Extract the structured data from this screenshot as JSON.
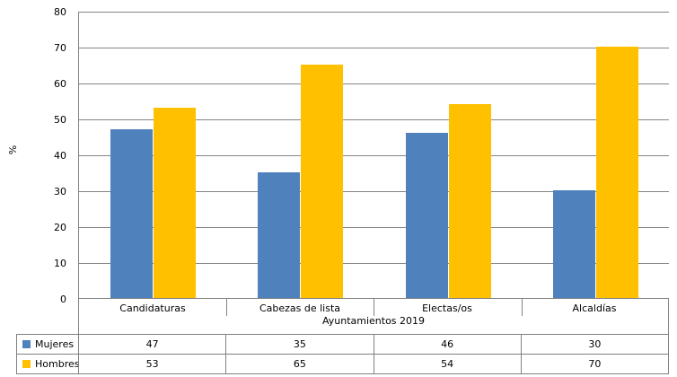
{
  "chart_data": {
    "type": "bar",
    "categories": [
      "Candidaturas",
      "Cabezas de lista",
      "Electas/os",
      "Alcaldías"
    ],
    "series": [
      {
        "name": "Mujeres",
        "values": [
          47,
          35,
          46,
          30
        ],
        "color": "#4F81BD"
      },
      {
        "name": "Hombres",
        "values": [
          53,
          65,
          54,
          70
        ],
        "color": "#FFC000"
      }
    ],
    "xlabel": "Ayuntamientos 2019",
    "ylabel": "%",
    "ylim": [
      0,
      80
    ],
    "yticks": [
      0,
      10,
      20,
      30,
      40,
      50,
      60,
      70,
      80
    ],
    "grid": true,
    "legend_position": "data-table-left-column",
    "data_table_shown": true
  },
  "colors": {
    "grid": "#848484",
    "axis": "#848484",
    "table_border": "#808080",
    "background": "#FFFFFF",
    "text": "#000000"
  }
}
